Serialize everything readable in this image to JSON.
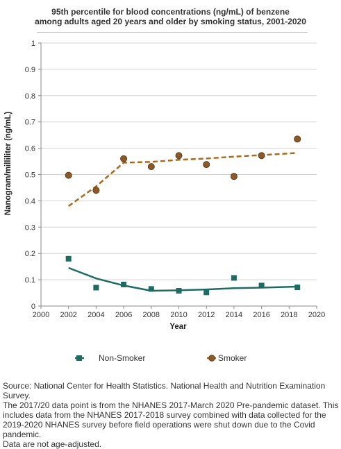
{
  "title_lines": [
    "95th percentile for blood concentrations (ng/mL) of benzene",
    "among adults aged 20 years and older by smoking status, 2001-2020"
  ],
  "source_lines": [
    "Source: National Center for Health Statistics. National Health and Nutrition Examination Survey.",
    "The 2017/20 data point is from the NHANES 2017-March 2020 Pre-pandemic dataset. This includes data from the NHANES 2017-2018 survey combined with data collected for the 2019-2020 NHANES survey before field operations were shut down due to the Covid pandemic.",
    "Data are not age-adjusted."
  ],
  "colors": {
    "non_smoker": "#1d6b62",
    "smoker_fill": "#8b5a2b",
    "smoker_edge": "#5e3b16",
    "smoker_trend": "#a86a1c",
    "grid": "#d3d3d3",
    "axis": "#888888"
  },
  "chart_data": {
    "type": "scatter",
    "xlabel": "Year",
    "ylabel": "Nanogram/milliliter (ng/mL)",
    "xlim": [
      2000,
      2020
    ],
    "ylim": [
      0,
      1
    ],
    "xticks": [
      2000,
      2002,
      2004,
      2006,
      2008,
      2010,
      2012,
      2014,
      2016,
      2018,
      2020
    ],
    "yticks": [
      0,
      0.1,
      0.2,
      0.3,
      0.4,
      0.5,
      0.6,
      0.7,
      0.8,
      0.9,
      1
    ],
    "ytick_labels": [
      "0",
      "0.1",
      "0.2",
      "0.3",
      "0.4",
      "0.5",
      "0.6",
      "0.7",
      "0.8",
      "0.9",
      "1"
    ],
    "grid": "horizontal",
    "legend_position": "bottom",
    "series": [
      {
        "name": "Non-Smoker",
        "marker": "square",
        "points": [
          [
            2002,
            0.18
          ],
          [
            2004,
            0.07
          ],
          [
            2006,
            0.082
          ],
          [
            2008,
            0.065
          ],
          [
            2010,
            0.058
          ],
          [
            2012,
            0.052
          ],
          [
            2014,
            0.107
          ],
          [
            2016,
            0.078
          ],
          [
            2018.6,
            0.071
          ]
        ],
        "trend": [
          [
            2002,
            0.145
          ],
          [
            2004,
            0.105
          ],
          [
            2006,
            0.078
          ],
          [
            2008,
            0.058
          ],
          [
            2010,
            0.06
          ],
          [
            2012,
            0.063
          ],
          [
            2014,
            0.068
          ],
          [
            2016,
            0.07
          ],
          [
            2018.6,
            0.074
          ]
        ]
      },
      {
        "name": "Smoker",
        "marker": "circle",
        "points": [
          [
            2002,
            0.497
          ],
          [
            2004,
            0.44
          ],
          [
            2006,
            0.56
          ],
          [
            2008,
            0.53
          ],
          [
            2010,
            0.572
          ],
          [
            2012,
            0.538
          ],
          [
            2014,
            0.493
          ],
          [
            2016,
            0.572
          ],
          [
            2018.6,
            0.635
          ]
        ],
        "trend": [
          [
            2002,
            0.38
          ],
          [
            2004,
            0.455
          ],
          [
            2006,
            0.545
          ],
          [
            2008,
            0.548
          ],
          [
            2010,
            0.556
          ],
          [
            2012,
            0.561
          ],
          [
            2014,
            0.568
          ],
          [
            2016,
            0.574
          ],
          [
            2018.6,
            0.582
          ]
        ]
      }
    ]
  }
}
